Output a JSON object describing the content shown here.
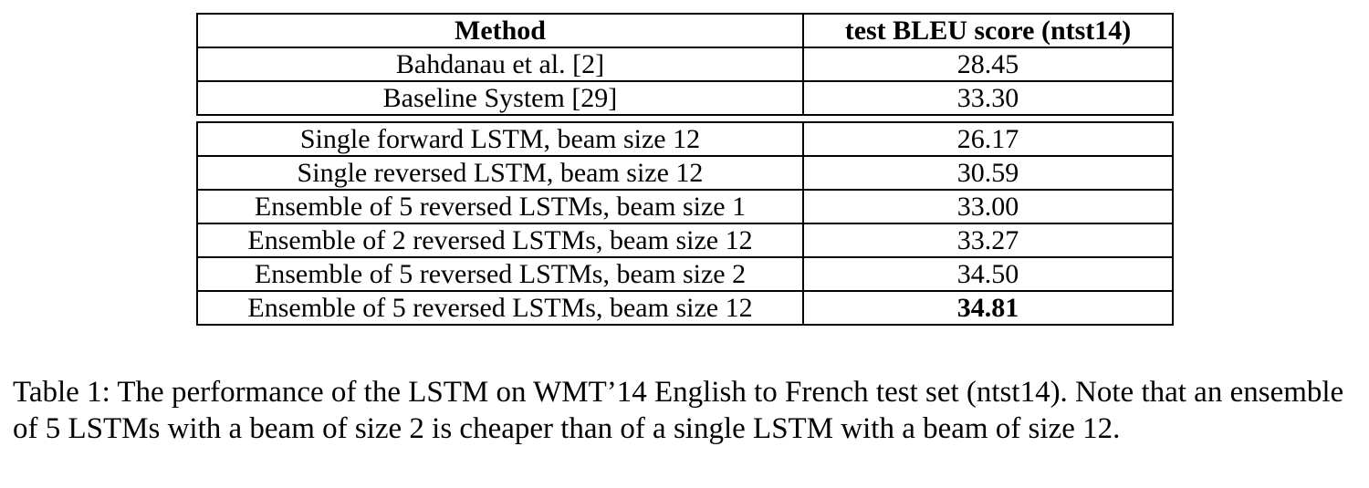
{
  "table": {
    "headers": {
      "method": "Method",
      "score": "test BLEU score (ntst14)"
    },
    "group1": [
      {
        "method": "Bahdanau et al. [2]",
        "score": "28.45"
      },
      {
        "method": "Baseline System [29]",
        "score": "33.30"
      }
    ],
    "group2": [
      {
        "method": "Single forward LSTM, beam size 12",
        "score": "26.17"
      },
      {
        "method": "Single reversed LSTM, beam size 12",
        "score": "30.59"
      },
      {
        "method": "Ensemble of 5 reversed LSTMs, beam size 1",
        "score": "33.00"
      },
      {
        "method": "Ensemble of 2 reversed LSTMs, beam size 12",
        "score": "33.27"
      },
      {
        "method": "Ensemble of 5 reversed LSTMs, beam size 2",
        "score": "34.50"
      },
      {
        "method": "Ensemble of 5 reversed LSTMs, beam size 12",
        "score": "34.81"
      }
    ]
  },
  "caption": "Table 1: The performance of the LSTM on WMT’14 English to French test set (ntst14). Note that an ensemble of 5 LSTMs with a beam of size 2 is cheaper than of a single LSTM with a beam of size 12."
}
